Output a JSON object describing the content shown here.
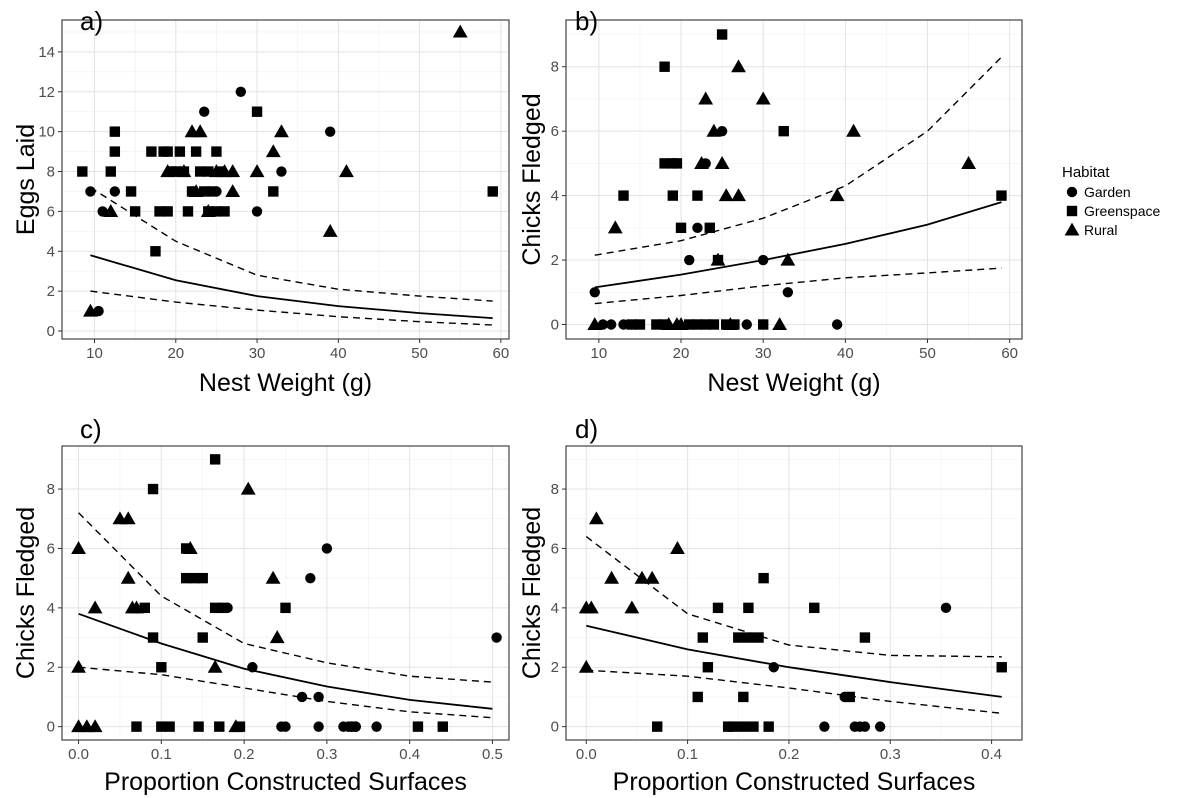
{
  "legend": {
    "title": "Habitat",
    "items": [
      {
        "label": "Garden",
        "shape": "circle"
      },
      {
        "label": "Greenspace",
        "shape": "square"
      },
      {
        "label": "Rural",
        "shape": "triangle"
      }
    ]
  },
  "chart_data": [
    {
      "type": "scatter",
      "panel_label": "a)",
      "xlabel": "Nest Weight (g)",
      "ylabel": "Eggs Laid",
      "xlim": [
        6,
        61
      ],
      "ylim": [
        -0.4,
        15.6
      ],
      "xticks": [
        10,
        20,
        30,
        40,
        50,
        60
      ],
      "yticks": [
        0,
        2,
        4,
        6,
        8,
        10,
        12,
        14
      ],
      "xminor": [
        15,
        25,
        35,
        45,
        55
      ],
      "yminor": [
        1,
        3,
        5,
        7,
        9,
        11,
        13,
        15
      ],
      "grid": true,
      "series": [
        {
          "name": "Garden",
          "shape": "circle",
          "points": [
            [
              9.5,
              7
            ],
            [
              11,
              6
            ],
            [
              12.5,
              7
            ],
            [
              20,
              8
            ],
            [
              22,
              7
            ],
            [
              23.5,
              11
            ],
            [
              25,
              7
            ],
            [
              28,
              12
            ],
            [
              30,
              6
            ],
            [
              33,
              8
            ],
            [
              39,
              10
            ],
            [
              10.5,
              1
            ]
          ]
        },
        {
          "name": "Greenspace",
          "shape": "square",
          "points": [
            [
              8.5,
              8
            ],
            [
              12,
              8
            ],
            [
              12.5,
              10
            ],
            [
              12.5,
              9
            ],
            [
              14.5,
              7
            ],
            [
              15,
              6
            ],
            [
              17,
              9
            ],
            [
              18,
              6
            ],
            [
              18.5,
              9
            ],
            [
              19,
              6
            ],
            [
              19,
              9
            ],
            [
              19.5,
              8
            ],
            [
              20,
              8
            ],
            [
              20.5,
              9
            ],
            [
              21,
              8
            ],
            [
              21.5,
              6
            ],
            [
              22,
              7
            ],
            [
              22.5,
              9
            ],
            [
              23,
              8
            ],
            [
              23.5,
              7
            ],
            [
              24,
              8
            ],
            [
              24,
              6
            ],
            [
              24.5,
              7
            ],
            [
              25,
              9
            ],
            [
              25,
              6
            ],
            [
              25.5,
              8
            ],
            [
              26,
              6
            ],
            [
              30,
              11
            ],
            [
              32,
              7
            ],
            [
              59,
              7
            ],
            [
              17.5,
              4
            ]
          ]
        },
        {
          "name": "Rural",
          "shape": "triangle",
          "points": [
            [
              12,
              6
            ],
            [
              19,
              8
            ],
            [
              21,
              8
            ],
            [
              22,
              10
            ],
            [
              22.5,
              7
            ],
            [
              23,
              10
            ],
            [
              24,
              6
            ],
            [
              25,
              8
            ],
            [
              26,
              8
            ],
            [
              27,
              7
            ],
            [
              27,
              8
            ],
            [
              30,
              8
            ],
            [
              32,
              9
            ],
            [
              33,
              10
            ],
            [
              39,
              5
            ],
            [
              41,
              8
            ],
            [
              55,
              15
            ],
            [
              9.5,
              1
            ]
          ]
        }
      ],
      "fit": {
        "x": [
          9.5,
          20,
          30,
          40,
          50,
          59
        ],
        "mean": [
          3.8,
          2.55,
          1.75,
          1.25,
          0.9,
          0.65
        ],
        "upper": [
          7.2,
          4.5,
          2.8,
          2.1,
          1.75,
          1.5
        ],
        "lower": [
          2.0,
          1.45,
          1.05,
          0.72,
          0.47,
          0.3
        ]
      }
    },
    {
      "type": "scatter",
      "panel_label": "b)",
      "xlabel": "Nest Weight (g)",
      "ylabel": "Chicks Fledged",
      "xlim": [
        6,
        61.5
      ],
      "ylim": [
        -0.45,
        9.45
      ],
      "xticks": [
        10,
        20,
        30,
        40,
        50,
        60
      ],
      "yticks": [
        0,
        2,
        4,
        6,
        8
      ],
      "xminor": [
        15,
        25,
        35,
        45,
        55
      ],
      "yminor": [
        1,
        3,
        5,
        7,
        9
      ],
      "grid": true,
      "series": [
        {
          "name": "Garden",
          "shape": "circle",
          "points": [
            [
              9.5,
              1
            ],
            [
              10.5,
              0
            ],
            [
              11.5,
              0
            ],
            [
              13,
              0
            ],
            [
              21,
              2
            ],
            [
              22,
              3
            ],
            [
              23,
              5
            ],
            [
              25,
              6
            ],
            [
              28,
              0
            ],
            [
              30,
              2
            ],
            [
              33,
              1
            ],
            [
              39,
              0
            ]
          ]
        },
        {
          "name": "Greenspace",
          "shape": "square",
          "points": [
            [
              13,
              4
            ],
            [
              14,
              0
            ],
            [
              15,
              0
            ],
            [
              17,
              0
            ],
            [
              18,
              0
            ],
            [
              18,
              8
            ],
            [
              18,
              5
            ],
            [
              19,
              5
            ],
            [
              19,
              4
            ],
            [
              20,
              3
            ],
            [
              21,
              0
            ],
            [
              22,
              0
            ],
            [
              22,
              4
            ],
            [
              23,
              0
            ],
            [
              23.5,
              3
            ],
            [
              24,
              0
            ],
            [
              24.5,
              2
            ],
            [
              25,
              9
            ],
            [
              25.5,
              0
            ],
            [
              26.5,
              0
            ],
            [
              30,
              0
            ],
            [
              32.5,
              6
            ],
            [
              59,
              4
            ],
            [
              19.5,
              5
            ]
          ]
        },
        {
          "name": "Rural",
          "shape": "triangle",
          "points": [
            [
              9.5,
              0
            ],
            [
              12,
              3
            ],
            [
              18.5,
              0
            ],
            [
              19.5,
              0
            ],
            [
              20,
              0
            ],
            [
              22.5,
              5
            ],
            [
              23,
              7
            ],
            [
              24,
              6
            ],
            [
              24.5,
              2
            ],
            [
              25,
              5
            ],
            [
              25.5,
              4
            ],
            [
              26,
              0
            ],
            [
              27,
              8
            ],
            [
              27,
              4
            ],
            [
              30,
              7
            ],
            [
              32,
              0
            ],
            [
              33,
              2
            ],
            [
              39,
              4
            ],
            [
              41,
              6
            ],
            [
              55,
              5
            ]
          ]
        }
      ],
      "fit": {
        "x": [
          9.5,
          20,
          30,
          40,
          50,
          59
        ],
        "mean": [
          1.15,
          1.55,
          2.0,
          2.5,
          3.1,
          3.8
        ],
        "upper": [
          2.15,
          2.6,
          3.3,
          4.3,
          6.0,
          8.3
        ],
        "lower": [
          0.65,
          0.9,
          1.2,
          1.45,
          1.6,
          1.75
        ]
      }
    },
    {
      "type": "scatter",
      "panel_label": "c)",
      "xlabel": "Proportion Constructed Surfaces",
      "ylabel": "Chicks Fledged",
      "xlim": [
        -0.02,
        0.52
      ],
      "ylim": [
        -0.45,
        9.45
      ],
      "xticks": [
        0.0,
        0.1,
        0.2,
        0.3,
        0.4,
        0.5
      ],
      "xticklabels": [
        "0.0",
        "0.1",
        "0.2",
        "0.3",
        "0.4",
        "0.5"
      ],
      "yticks": [
        0,
        2,
        4,
        6,
        8
      ],
      "xminor": [
        0.05,
        0.15,
        0.25,
        0.35,
        0.45
      ],
      "yminor": [
        1,
        3,
        5,
        7,
        9
      ],
      "grid": true,
      "series": [
        {
          "name": "Garden",
          "shape": "circle",
          "points": [
            [
              0.18,
              4
            ],
            [
              0.21,
              2
            ],
            [
              0.245,
              0
            ],
            [
              0.25,
              0
            ],
            [
              0.27,
              1
            ],
            [
              0.28,
              5
            ],
            [
              0.29,
              1
            ],
            [
              0.29,
              0
            ],
            [
              0.3,
              6
            ],
            [
              0.32,
              0
            ],
            [
              0.33,
              0
            ],
            [
              0.335,
              0
            ],
            [
              0.36,
              0
            ],
            [
              0.505,
              3
            ]
          ]
        },
        {
          "name": "Greenspace",
          "shape": "square",
          "points": [
            [
              0.07,
              0
            ],
            [
              0.08,
              4
            ],
            [
              0.09,
              3
            ],
            [
              0.09,
              8
            ],
            [
              0.1,
              2
            ],
            [
              0.1,
              0
            ],
            [
              0.11,
              0
            ],
            [
              0.13,
              6
            ],
            [
              0.13,
              5
            ],
            [
              0.14,
              5
            ],
            [
              0.145,
              0
            ],
            [
              0.15,
              3
            ],
            [
              0.15,
              5
            ],
            [
              0.165,
              4
            ],
            [
              0.165,
              9
            ],
            [
              0.17,
              0
            ],
            [
              0.175,
              4
            ],
            [
              0.195,
              0
            ],
            [
              0.25,
              4
            ],
            [
              0.33,
              0
            ],
            [
              0.41,
              0
            ],
            [
              0.44,
              0
            ]
          ]
        },
        {
          "name": "Rural",
          "shape": "triangle",
          "points": [
            [
              0.0,
              6
            ],
            [
              0.0,
              2
            ],
            [
              0.0,
              0
            ],
            [
              0.01,
              0
            ],
            [
              0.02,
              0
            ],
            [
              0.02,
              4
            ],
            [
              0.05,
              7
            ],
            [
              0.06,
              7
            ],
            [
              0.06,
              5
            ],
            [
              0.065,
              4
            ],
            [
              0.07,
              4
            ],
            [
              0.135,
              6
            ],
            [
              0.165,
              2
            ],
            [
              0.19,
              0
            ],
            [
              0.205,
              8
            ],
            [
              0.235,
              5
            ],
            [
              0.24,
              3
            ]
          ]
        }
      ],
      "fit": {
        "x": [
          0.0,
          0.1,
          0.2,
          0.3,
          0.4,
          0.5
        ],
        "mean": [
          3.8,
          2.8,
          1.95,
          1.35,
          0.9,
          0.6
        ],
        "upper": [
          7.2,
          4.4,
          2.8,
          2.15,
          1.7,
          1.5
        ],
        "lower": [
          2.0,
          1.75,
          1.3,
          0.85,
          0.5,
          0.3
        ]
      }
    },
    {
      "type": "scatter",
      "panel_label": "d)",
      "xlabel": "Proportion Constructed Surfaces",
      "ylabel": "Chicks Fledged",
      "xlim": [
        -0.02,
        0.43
      ],
      "ylim": [
        -0.45,
        9.45
      ],
      "xticks": [
        0.0,
        0.1,
        0.2,
        0.3,
        0.4
      ],
      "xticklabels": [
        "0.0",
        "0.1",
        "0.2",
        "0.3",
        "0.4"
      ],
      "yticks": [
        0,
        2,
        4,
        6,
        8
      ],
      "xminor": [
        0.05,
        0.15,
        0.25,
        0.35
      ],
      "yminor": [
        1,
        3,
        5,
        7,
        9
      ],
      "grid": true,
      "series": [
        {
          "name": "Garden",
          "shape": "circle",
          "points": [
            [
              0.185,
              2
            ],
            [
              0.235,
              0
            ],
            [
              0.255,
              1
            ],
            [
              0.265,
              0
            ],
            [
              0.27,
              0
            ],
            [
              0.275,
              0
            ],
            [
              0.29,
              0
            ],
            [
              0.355,
              4
            ]
          ]
        },
        {
          "name": "Greenspace",
          "shape": "square",
          "points": [
            [
              0.07,
              0
            ],
            [
              0.11,
              1
            ],
            [
              0.115,
              3
            ],
            [
              0.12,
              2
            ],
            [
              0.13,
              4
            ],
            [
              0.14,
              0
            ],
            [
              0.145,
              0
            ],
            [
              0.15,
              3
            ],
            [
              0.155,
              1
            ],
            [
              0.155,
              0
            ],
            [
              0.16,
              3
            ],
            [
              0.16,
              4
            ],
            [
              0.165,
              0
            ],
            [
              0.17,
              3
            ],
            [
              0.175,
              5
            ],
            [
              0.18,
              0
            ],
            [
              0.225,
              4
            ],
            [
              0.26,
              1
            ],
            [
              0.275,
              3
            ],
            [
              0.41,
              2
            ]
          ]
        },
        {
          "name": "Rural",
          "shape": "triangle",
          "points": [
            [
              0.0,
              4
            ],
            [
              0.0,
              2
            ],
            [
              0.005,
              4
            ],
            [
              0.01,
              7
            ],
            [
              0.025,
              5
            ],
            [
              0.045,
              4
            ],
            [
              0.055,
              5
            ],
            [
              0.065,
              5
            ],
            [
              0.09,
              6
            ]
          ]
        }
      ],
      "fit": {
        "x": [
          0.0,
          0.1,
          0.2,
          0.3,
          0.41
        ],
        "mean": [
          3.4,
          2.6,
          2.0,
          1.5,
          1.0
        ],
        "upper": [
          6.4,
          3.8,
          2.75,
          2.4,
          2.35
        ],
        "lower": [
          1.9,
          1.7,
          1.3,
          0.85,
          0.45
        ]
      }
    }
  ]
}
